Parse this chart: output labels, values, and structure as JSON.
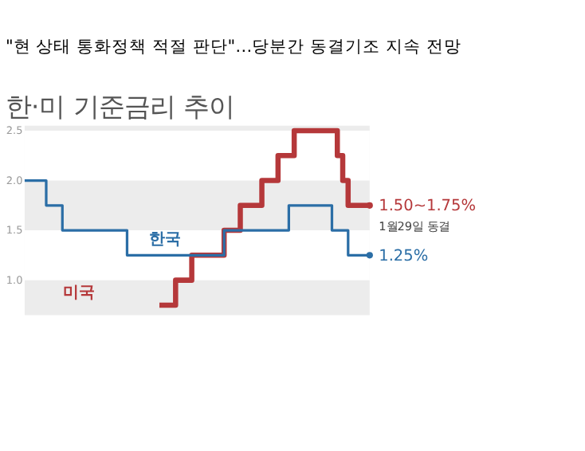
{
  "chart_data": {
    "type": "step",
    "title": "\"현 상태 통화정책 적절 판단\"…당분간 동결기조 지속 전망",
    "subtitle": "한·미 기준금리 추이",
    "categories": [
      null,
      null,
      null,
      null,
      null,
      null,
      null,
      null,
      null,
      null,
      null,
      null,
      null,
      null,
      null,
      null,
      null,
      null,
      null,
      null,
      null,
      null,
      null,
      null,
      null,
      null,
      null,
      null,
      null,
      null,
      null,
      null,
      null,
      null,
      null,
      null,
      null,
      null,
      null,
      null,
      null,
      null,
      null,
      null,
      null,
      null,
      null,
      null,
      null,
      null,
      null,
      null,
      null,
      null,
      null,
      null,
      null,
      null,
      null,
      null,
      null,
      null,
      null,
      null,
      null
    ],
    "series": [
      {
        "name": "한국",
        "color": "#2b6ea6",
        "values": [
          2.0,
          2.0,
          2.0,
          2.0,
          1.75,
          1.75,
          1.75,
          1.5,
          1.5,
          1.5,
          1.5,
          1.5,
          1.5,
          1.5,
          1.5,
          1.5,
          1.5,
          1.5,
          1.5,
          1.25,
          1.25,
          1.25,
          1.25,
          1.25,
          1.25,
          1.25,
          1.25,
          1.25,
          1.25,
          1.25,
          1.25,
          1.25,
          1.25,
          1.25,
          1.25,
          1.25,
          1.25,
          1.5,
          1.5,
          1.5,
          1.5,
          1.5,
          1.5,
          1.5,
          1.5,
          1.5,
          1.5,
          1.5,
          1.5,
          1.75,
          1.75,
          1.75,
          1.75,
          1.75,
          1.75,
          1.75,
          1.75,
          1.5,
          1.5,
          1.5,
          1.25,
          1.25,
          1.25,
          1.25,
          1.25
        ]
      },
      {
        "name": "미국",
        "color": "#b5383a",
        "values": [
          null,
          null,
          null,
          null,
          null,
          null,
          null,
          null,
          null,
          null,
          null,
          null,
          null,
          null,
          null,
          null,
          null,
          null,
          null,
          null,
          null,
          null,
          null,
          null,
          null,
          0.75,
          0.75,
          0.75,
          1.0,
          1.0,
          1.0,
          1.25,
          1.25,
          1.25,
          1.25,
          1.25,
          1.25,
          1.5,
          1.5,
          1.5,
          1.75,
          1.75,
          1.75,
          1.75,
          2.0,
          2.0,
          2.0,
          2.25,
          2.25,
          2.25,
          2.5,
          2.5,
          2.5,
          2.5,
          2.5,
          2.5,
          2.5,
          2.5,
          2.25,
          2.0,
          1.75,
          1.75,
          1.75,
          1.75,
          1.75
        ]
      }
    ],
    "ylim": [
      0.65,
      2.55
    ],
    "yticks": [
      {
        "value": 1.0,
        "label": "1.0"
      },
      1.5,
      {
        "value": 2.0,
        "label": "2.0"
      },
      2.5
    ],
    "bands": [
      {
        "axis": "y",
        "from": 1.0,
        "to": 1.5,
        "color": "#ffffff"
      },
      {
        "axis": "y",
        "from": 2.0,
        "to": 2.5,
        "color": "#ffffff"
      }
    ],
    "annotations": [
      "1.50~1.75%",
      "1월29일 동결",
      "1.25%"
    ],
    "grid": false
  }
}
